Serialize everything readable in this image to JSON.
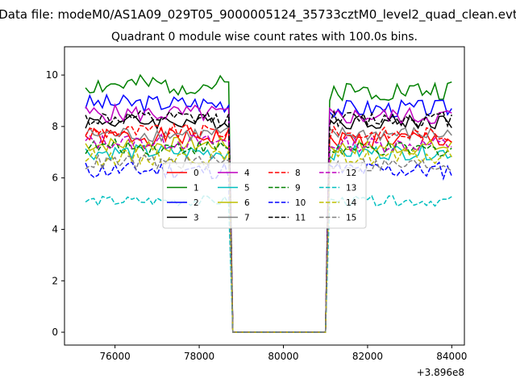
{
  "chart_data": {
    "type": "line",
    "suptitle": "Data file: modeM0/AS1A09_029T05_9000005124_35733cztM0_level2_quad_clean.evt",
    "title": "Quadrant 0 module wise count rates with 100.0s bins.",
    "xlabel": "",
    "ylabel": "",
    "x_offset_label": "+3.896e8",
    "xlim": [
      74800,
      84300
    ],
    "ylim": [
      -0.5,
      11.1
    ],
    "x_ticks": [
      76000,
      78000,
      80000,
      82000,
      84000
    ],
    "x_tick_labels": [
      "76000",
      "78000",
      "80000",
      "82000",
      "84000"
    ],
    "y_ticks": [
      0,
      2,
      4,
      6,
      8,
      10
    ],
    "y_tick_labels": [
      "0",
      "2",
      "4",
      "6",
      "8",
      "10"
    ],
    "x_range": {
      "start": 75300,
      "step": 100,
      "count": 88
    },
    "gap": {
      "from": 78800,
      "to": 81000
    },
    "legend_location": "center",
    "legend_columns": 4,
    "series": [
      {
        "name": "0",
        "color": "#ff0000",
        "style": "solid",
        "level_before": 7.6,
        "level_after": 7.5,
        "amp": 0.35
      },
      {
        "name": "1",
        "color": "#008000",
        "style": "solid",
        "level_before": 9.6,
        "level_after": 9.4,
        "amp": 0.4
      },
      {
        "name": "2",
        "color": "#0000ff",
        "style": "solid",
        "level_before": 8.9,
        "level_after": 8.7,
        "amp": 0.35
      },
      {
        "name": "3",
        "color": "#000000",
        "style": "solid",
        "level_before": 8.2,
        "level_after": 8.2,
        "amp": 0.3
      },
      {
        "name": "4",
        "color": "#bf00bf",
        "style": "solid",
        "level_before": 8.5,
        "level_after": 8.4,
        "amp": 0.35
      },
      {
        "name": "5",
        "color": "#00bfbf",
        "style": "solid",
        "level_before": 7.0,
        "level_after": 7.0,
        "amp": 0.3
      },
      {
        "name": "6",
        "color": "#bfbf00",
        "style": "solid",
        "level_before": 7.3,
        "level_after": 7.2,
        "amp": 0.3
      },
      {
        "name": "7",
        "color": "#808080",
        "style": "solid",
        "level_before": 7.7,
        "level_after": 7.7,
        "amp": 0.3
      },
      {
        "name": "8",
        "color": "#ff0000",
        "style": "dashed",
        "level_before": 7.8,
        "level_after": 7.7,
        "amp": 0.3
      },
      {
        "name": "9",
        "color": "#008000",
        "style": "dashed",
        "level_before": 7.2,
        "level_after": 7.1,
        "amp": 0.3
      },
      {
        "name": "10",
        "color": "#0000ff",
        "style": "dashed",
        "level_before": 6.3,
        "level_after": 6.3,
        "amp": 0.35
      },
      {
        "name": "11",
        "color": "#000000",
        "style": "dashed",
        "level_before": 8.3,
        "level_after": 8.3,
        "amp": 0.3
      },
      {
        "name": "12",
        "color": "#bf00bf",
        "style": "dashed",
        "level_before": 7.4,
        "level_after": 7.3,
        "amp": 0.3
      },
      {
        "name": "13",
        "color": "#00bfbf",
        "style": "dashed",
        "level_before": 5.1,
        "level_after": 5.1,
        "amp": 0.2
      },
      {
        "name": "14",
        "color": "#bfbf00",
        "style": "dashed",
        "level_before": 6.8,
        "level_after": 6.8,
        "amp": 0.3
      },
      {
        "name": "15",
        "color": "#808080",
        "style": "dashed",
        "level_before": 6.6,
        "level_after": 6.5,
        "amp": 0.3
      }
    ]
  }
}
